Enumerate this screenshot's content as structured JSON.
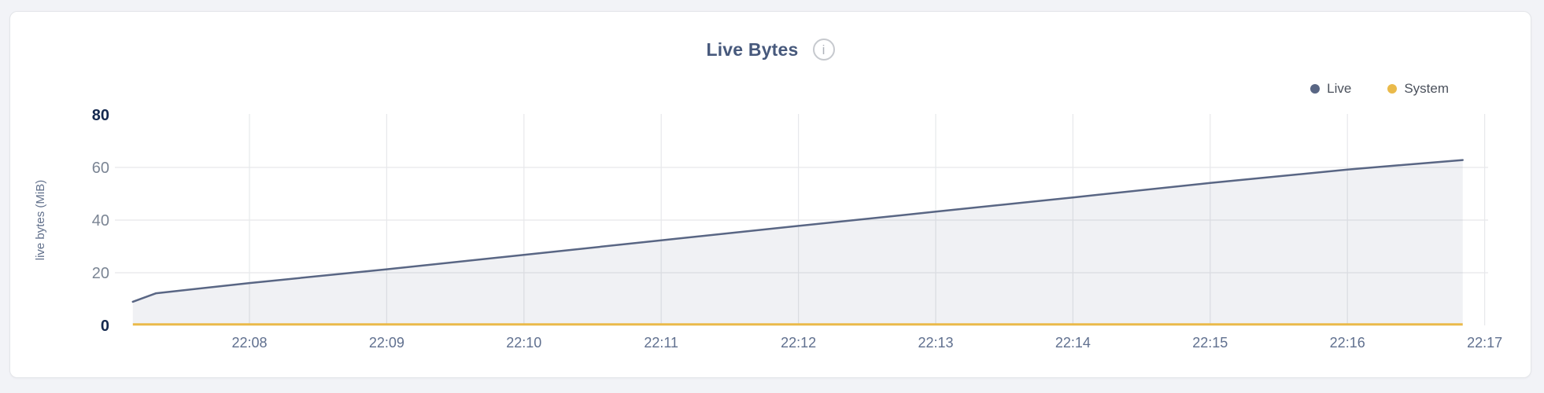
{
  "page": {
    "background": "#f2f3f7"
  },
  "header": {
    "info_icon_glyph": "i"
  },
  "chart_data": {
    "type": "area",
    "title": "Live Bytes",
    "ylabel": "live bytes (MiB)",
    "ylim": [
      0,
      80
    ],
    "y_ticks": [
      0,
      20,
      40,
      60,
      80
    ],
    "y_ticks_emphasized": [
      0,
      80
    ],
    "y_grid_ticks": [
      20,
      40,
      60
    ],
    "x_ticks": [
      {
        "minute": 8,
        "label": "22:08"
      },
      {
        "minute": 9,
        "label": "22:09"
      },
      {
        "minute": 10,
        "label": "22:10"
      },
      {
        "minute": 11,
        "label": "22:11"
      },
      {
        "minute": 12,
        "label": "22:12"
      },
      {
        "minute": 13,
        "label": "22:13"
      },
      {
        "minute": 14,
        "label": "22:14"
      },
      {
        "minute": 15,
        "label": "22:15"
      },
      {
        "minute": 16,
        "label": "22:16"
      },
      {
        "minute": 17,
        "label": "22:17"
      }
    ],
    "xlim_minutes": [
      7.0,
      17.05
    ],
    "grid": true,
    "legend_position": "top-right",
    "series": [
      {
        "name": "Live",
        "color": "#596684",
        "fill": "rgba(89,102,132,0.09)",
        "points": [
          [
            7.15,
            9.0
          ],
          [
            7.32,
            12.2
          ],
          [
            8,
            16.1
          ],
          [
            9,
            21.3
          ],
          [
            10,
            26.8
          ],
          [
            11,
            32.3
          ],
          [
            12,
            37.8
          ],
          [
            13,
            43.2
          ],
          [
            14,
            48.6
          ],
          [
            15,
            54.1
          ],
          [
            16,
            59.2
          ],
          [
            16.84,
            62.8
          ]
        ]
      },
      {
        "name": "System",
        "color": "#eaba4a",
        "points": [
          [
            7.15,
            0.4
          ],
          [
            16.84,
            0.4
          ]
        ]
      }
    ]
  }
}
